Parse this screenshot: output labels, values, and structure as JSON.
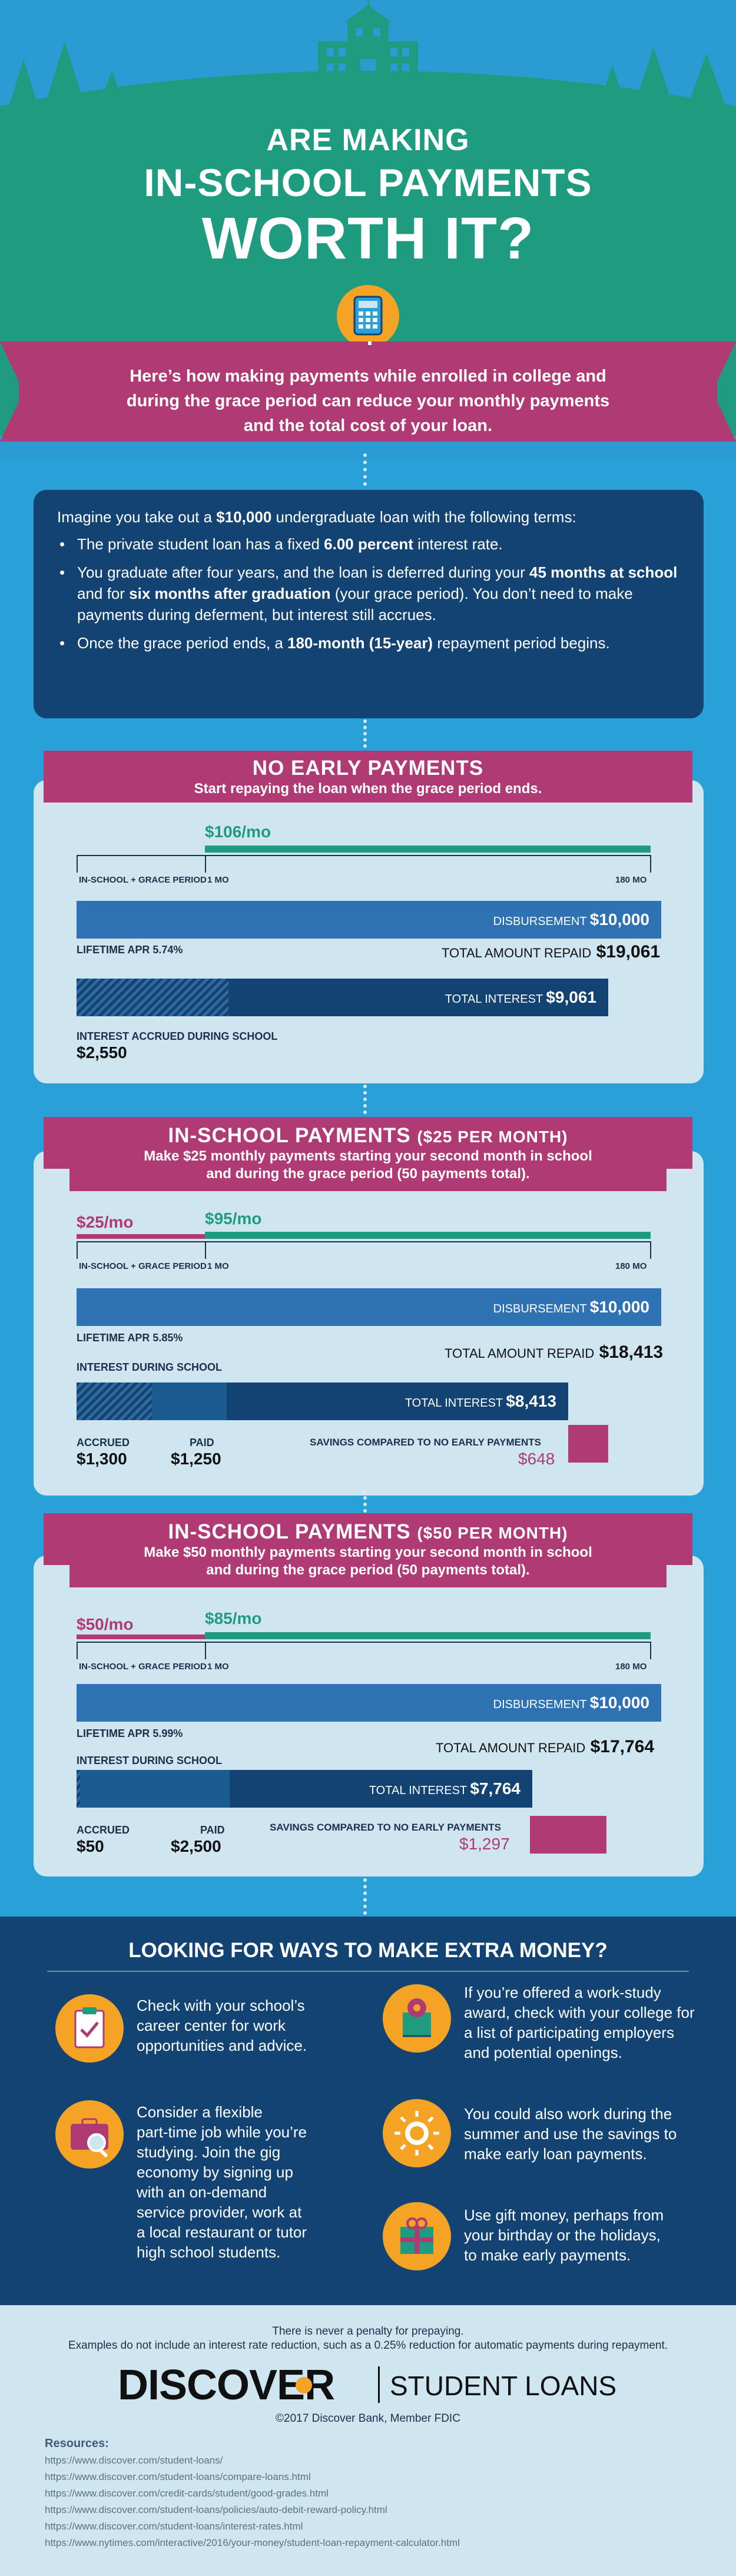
{
  "header": {
    "title_line1": "ARE MAKING",
    "title_line2": "IN-SCHOOL PAYMENTS",
    "title_line3": "WORTH IT?",
    "intro_line1": "Here’s how making payments while enrolled in college and",
    "intro_line2": "during the grace period can reduce your monthly payments",
    "intro_line3": "and the total cost of your loan."
  },
  "terms": {
    "lead_pre": "Imagine you take out a ",
    "lead_amount": "$10,000",
    "lead_post": " undergraduate loan with the following terms:",
    "b1_pre": "The private student loan has a fixed ",
    "b1_bold": "6.00 percent",
    "b1_post": " interest rate.",
    "b2_pre": "You graduate after four years, and the loan is deferred during your ",
    "b2_bold1": "45 months at school",
    "b2_mid": " and for ",
    "b2_bold2": "six months after graduation",
    "b2_post": " (your grace period). You don’t need to make payments during deferment, but interest still accrues.",
    "b3_pre": "Once the grace period ends, a ",
    "b3_bold": "180-month (15-year)",
    "b3_post": " repayment period begins."
  },
  "common": {
    "inschool_grace": "IN-SCHOOL + GRACE PERIOD",
    "one_mo": "1 MO",
    "end_mo": "180 MO",
    "disbursement_label": "DISBURSEMENT",
    "disbursement_value": "$10,000",
    "total_repaid_label": "TOTAL AMOUNT REPAID",
    "total_interest_label": "TOTAL INTEREST",
    "savings_label": "SAVINGS COMPARED TO NO EARLY PAYMENTS",
    "interest_during_school": "INTEREST DURING SCHOOL",
    "accrued": "ACCRUED",
    "paid": "PAID"
  },
  "scenario1": {
    "heading": "NO EARLY PAYMENTS",
    "sub": "Start repaying the loan when the grace period ends.",
    "monthly": "$106/mo",
    "apr": "LIFETIME APR 5.74%",
    "total_repaid": "$19,061",
    "total_interest": "$9,061",
    "accrued_label": "INTEREST ACCRUED DURING SCHOOL",
    "accrued_value": "$2,550"
  },
  "scenario2": {
    "heading": "IN-SCHOOL PAYMENTS",
    "heading_small": "($25 PER MONTH)",
    "sub1": "Make $25 monthly payments starting your second month in school",
    "sub2": "and during the grace period (50 payments total).",
    "school_monthly": "$25/mo",
    "monthly": "$95/mo",
    "apr": "LIFETIME APR 5.85%",
    "total_repaid": "$18,413",
    "total_interest": "$8,413",
    "accrued_value": "$1,300",
    "paid_value": "$1,250",
    "savings": "$648"
  },
  "scenario3": {
    "heading": "IN-SCHOOL PAYMENTS",
    "heading_small": "($50 PER MONTH)",
    "sub1": "Make $50 monthly payments starting your second month in school",
    "sub2": "and during the grace period (50 payments total).",
    "school_monthly": "$50/mo",
    "monthly": "$85/mo",
    "apr": "LIFETIME APR 5.99%",
    "total_repaid": "$17,764",
    "total_interest": "$7,764",
    "accrued_value": "$50",
    "paid_value": "$2,500",
    "savings": "$1,297"
  },
  "money": {
    "heading": "LOOKING FOR WAYS TO MAKE EXTRA MONEY?",
    "tip1": [
      "Check with your school’s",
      "career center for work",
      "opportunities and advice."
    ],
    "tip2": [
      "Consider a flexible",
      "part-time job while you’re",
      "studying. Join the gig",
      "economy by signing up",
      "with an on-demand",
      "service provider, work at",
      "a local restaurant or tutor",
      "high school students."
    ],
    "tip3": [
      "If you’re offered a work-study",
      "award, check with your college for",
      "a list of participating employers",
      "and potential openings."
    ],
    "tip4": [
      "You could also work during the",
      "summer and use the savings to",
      "make early loan payments."
    ],
    "tip5": [
      "Use gift money, perhaps from",
      "your birthday or the holidays,",
      "to make early payments."
    ]
  },
  "footer": {
    "note1": "There is never a penalty for prepaying.",
    "note2": "Examples do not include an interest rate reduction, such as a 0.25% reduction for automatic payments during repayment.",
    "brand": "DISCOVER",
    "brand_sub": "STUDENT LOANS",
    "copyright": "©2017 Discover Bank, Member FDIC",
    "resources_label": "Resources:",
    "resources": [
      "https://www.discover.com/student-loans/",
      "https://www.discover.com/student-loans/compare-loans.html",
      "https://www.discover.com/credit-cards/student/good-grades.html",
      "https://www.discover.com/student-loans/policies/auto-debit-reward-policy.html",
      "https://www.discover.com/student-loans/interest-rates.html",
      "https://www.nytimes.com/interactive/2016/your-money/student-loan-repayment-calculator.html"
    ]
  },
  "colors": {
    "navy": "#124373",
    "pink": "#b03a73",
    "green": "#1f9c7f",
    "sky": "#2aa0d8",
    "orange": "#f4a324"
  }
}
